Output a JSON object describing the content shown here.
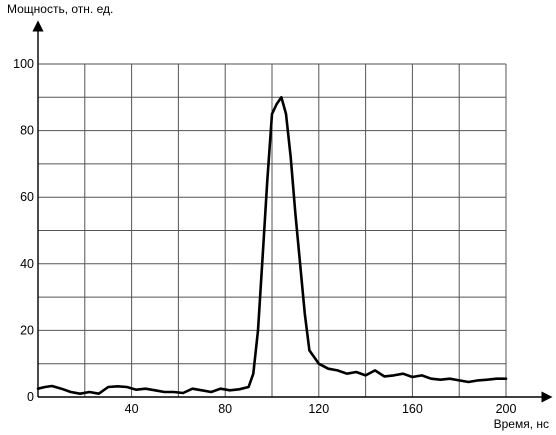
{
  "chart_data": {
    "type": "line",
    "title": "",
    "ylabel": "Мощность, отн. ед.",
    "xlabel": "Время, нс",
    "xlim": [
      0,
      200
    ],
    "ylim": [
      0,
      100
    ],
    "grid": true,
    "x_ticks": [
      40,
      80,
      120,
      160,
      200
    ],
    "y_ticks": [
      0,
      20,
      40,
      60,
      80,
      100
    ],
    "x_gridlines": [
      20,
      40,
      60,
      80,
      100,
      120,
      140,
      160,
      180,
      200
    ],
    "y_gridlines": [
      10,
      20,
      30,
      40,
      50,
      60,
      70,
      80,
      90,
      100
    ],
    "series": [
      {
        "x": [
          0,
          3,
          6,
          10,
          14,
          18,
          22,
          26,
          30,
          34,
          38,
          42,
          46,
          50,
          54,
          58,
          62,
          66,
          70,
          74,
          78,
          82,
          86,
          90,
          92,
          94,
          96,
          98,
          100,
          102,
          104,
          106,
          108,
          110,
          112,
          114,
          116,
          118,
          120,
          124,
          128,
          132,
          136,
          140,
          144,
          148,
          152,
          156,
          160,
          164,
          168,
          172,
          176,
          180,
          184,
          188,
          192,
          196,
          200
        ],
        "y": [
          2.5,
          3,
          3.3,
          2.5,
          1.5,
          1,
          1.5,
          1,
          3,
          3.2,
          3,
          2.2,
          2.5,
          2,
          1.5,
          1.5,
          1.2,
          2.5,
          2,
          1.5,
          2.5,
          2,
          2.3,
          3,
          7,
          20,
          42,
          65,
          85,
          88,
          90,
          85,
          72,
          55,
          40,
          25,
          14,
          12,
          10,
          8.5,
          8,
          7,
          7.5,
          6.5,
          8,
          6.2,
          6.5,
          7,
          6,
          6.5,
          5.5,
          5.2,
          5.5,
          5,
          4.5,
          5,
          5.2,
          5.5,
          5.5
        ]
      }
    ]
  }
}
